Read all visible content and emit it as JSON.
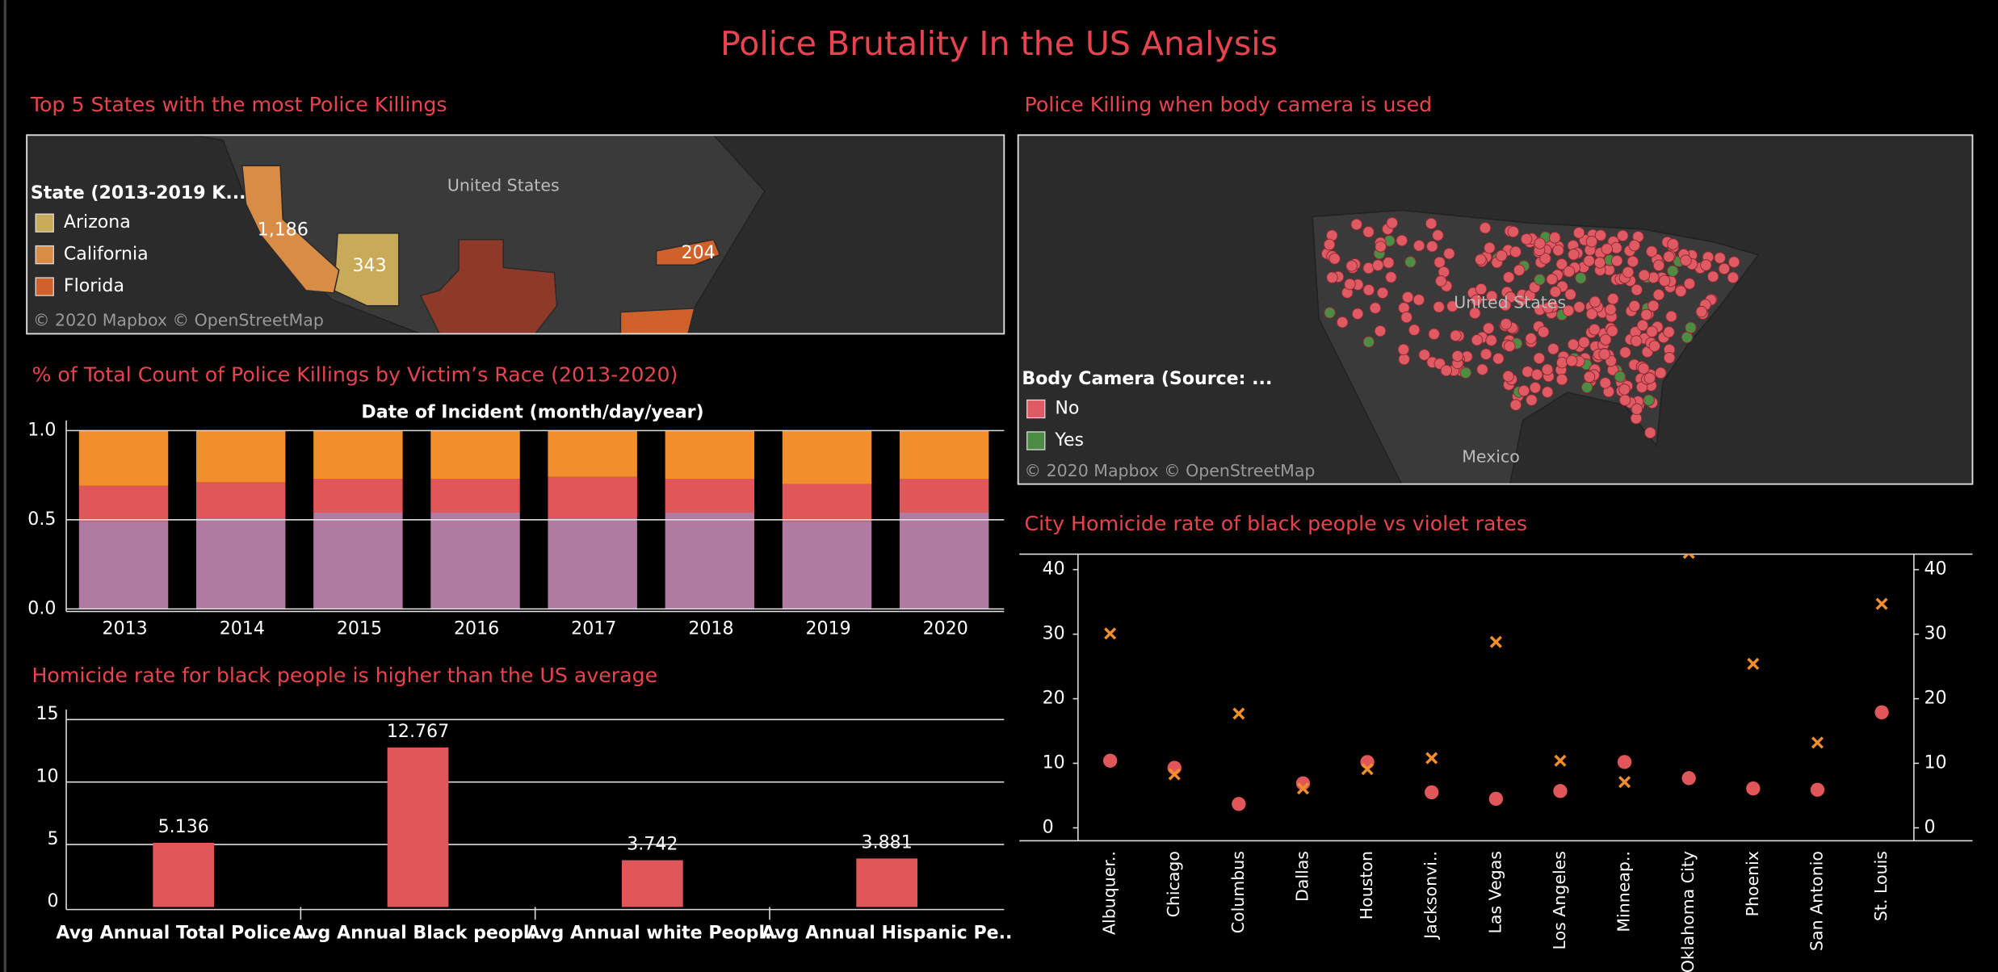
{
  "title": "Police Brutality In the US Analysis",
  "chart_data": [
    {
      "type": "map",
      "title": "Top 5 States with the most Police Killings",
      "legend_title": "State (2013-2019 K...",
      "regions": [
        {
          "name": "Arizona",
          "color": "#c9aa58",
          "value": 343
        },
        {
          "name": "California",
          "color": "#d98c45",
          "value": 1186,
          "value_label": "1,186"
        },
        {
          "name": "Florida",
          "color": "#d0612a"
        },
        {
          "color": "#d0612a",
          "value": 204
        },
        {
          "color": "#8f3a28"
        }
      ],
      "place_labels": [
        "United States"
      ],
      "attribution": "© 2020 Mapbox  © OpenStreetMap"
    },
    {
      "type": "stacked_bar",
      "title": "% of Total Count of Police Killings by Victim’s Race (2013-2020)",
      "x_label": "Date of Incident (month/day/year)",
      "categories": [
        "2013",
        "2014",
        "2015",
        "2016",
        "2017",
        "2018",
        "2019",
        "2020"
      ],
      "series": [
        {
          "color": "#b07aa1",
          "values": [
            0.49,
            0.51,
            0.54,
            0.54,
            0.51,
            0.54,
            0.49,
            0.54
          ]
        },
        {
          "color": "#e15759",
          "values": [
            0.2,
            0.2,
            0.19,
            0.19,
            0.23,
            0.19,
            0.21,
            0.19
          ]
        },
        {
          "color": "#f28e2b",
          "values": [
            0.31,
            0.29,
            0.27,
            0.27,
            0.26,
            0.27,
            0.3,
            0.27
          ]
        }
      ],
      "ylim": [
        0,
        1
      ],
      "yticks": [
        {
          "value": 0,
          "label": "0.0"
        },
        {
          "value": 0.5,
          "label": "0.5"
        },
        {
          "value": 1,
          "label": "1.0"
        }
      ],
      "grid": true
    },
    {
      "type": "bar",
      "title": "Homicide rate for black people is higher than the US average",
      "categories": [
        "Avg Annual Total Police ..",
        "Avg Annual Black peopl..",
        "Avg Annual white Peopl..",
        "Avg Annual Hispanic Pe.."
      ],
      "values": [
        5.136,
        12.767,
        3.742,
        3.881
      ],
      "color": "#e15759",
      "ylim": [
        0,
        15.8
      ],
      "yticks": [
        0,
        5,
        10,
        15
      ],
      "grid": true
    },
    {
      "type": "map",
      "title": "Police Killing when body camera is used",
      "legend_title": "Body Camera (Source: ...",
      "series": [
        {
          "name": "No",
          "color": "#e05a63"
        },
        {
          "name": "Yes",
          "color": "#4c8c45"
        }
      ],
      "place_labels": [
        "United States",
        "Mexico"
      ],
      "attribution": "© 2020 Mapbox  © OpenStreetMap"
    },
    {
      "type": "dual_scatter",
      "title": "City Homicide rate of black people vs violet rates",
      "categories": [
        "Albuquer..",
        "Chicago",
        "Columbus",
        "Dallas",
        "Houston",
        "Jacksonvi..",
        "Las Vegas",
        "Los Angeles",
        "Minneap..",
        "Oklahoma City",
        "Phoenix",
        "San Antonio",
        "St. Louis"
      ],
      "series": [
        {
          "color": "#e15759",
          "marker": "circle",
          "values": [
            10.4,
            9.3,
            3.7,
            6.9,
            10.2,
            5.5,
            4.5,
            5.7,
            10.2,
            7.7,
            6.1,
            5.9,
            17.9
          ]
        },
        {
          "color": "#f28e2b",
          "marker": "x",
          "axis": "y2",
          "values": [
            30.1,
            8.3,
            17.7,
            6.1,
            9.1,
            10.8,
            28.8,
            10.4,
            7.1,
            42.6,
            25.4,
            13.2,
            34.7
          ]
        }
      ],
      "ylim": [
        -2,
        42.4
      ],
      "yticks": [
        0,
        10,
        20,
        30,
        40
      ],
      "y2lim": [
        -2,
        42.4
      ],
      "y2ticks": [
        0,
        10,
        20,
        30,
        40
      ]
    }
  ]
}
